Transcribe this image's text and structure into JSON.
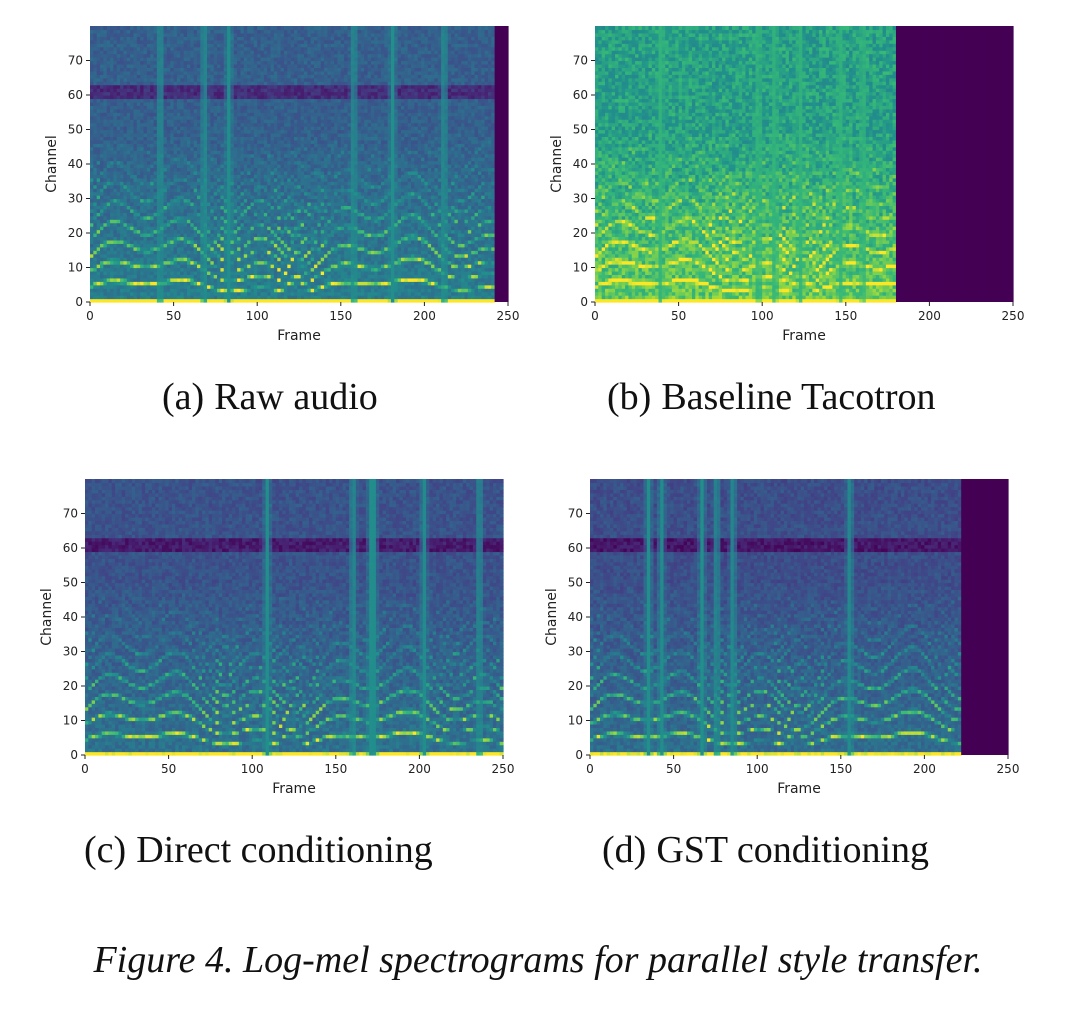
{
  "figure": {
    "caption_label": "Figure 4.",
    "caption_text": "Log-mel spectrograms for parallel style transfer."
  },
  "panels": [
    {
      "letter": "(a)",
      "title": "Raw audio"
    },
    {
      "letter": "(b)",
      "title": "Baseline Tacotron"
    },
    {
      "letter": "(c)",
      "title": "Direct conditioning"
    },
    {
      "letter": "(d)",
      "title": "GST conditioning"
    }
  ],
  "chart_data": [
    {
      "type": "heatmap",
      "xlabel": "Frame",
      "ylabel": "Channel",
      "xlim": [
        0,
        250
      ],
      "ylim": [
        0,
        80
      ],
      "xticks": [
        0,
        50,
        100,
        150,
        200,
        250
      ],
      "yticks": [
        0,
        10,
        20,
        30,
        40,
        50,
        60,
        70
      ],
      "colormap": "viridis",
      "active_frames": 242,
      "padding_color": "#440154"
    },
    {
      "type": "heatmap",
      "xlabel": "Frame",
      "ylabel": "Channel",
      "xlim": [
        0,
        250
      ],
      "ylim": [
        0,
        80
      ],
      "xticks": [
        0,
        50,
        100,
        150,
        200,
        250
      ],
      "yticks": [
        0,
        10,
        20,
        30,
        40,
        50,
        60,
        70
      ],
      "colormap": "viridis",
      "active_frames": 180,
      "padding_color": "#440154"
    },
    {
      "type": "heatmap",
      "xlabel": "Frame",
      "ylabel": "Channel",
      "xlim": [
        0,
        250
      ],
      "ylim": [
        0,
        80
      ],
      "xticks": [
        0,
        50,
        100,
        150,
        200,
        250
      ],
      "yticks": [
        0,
        10,
        20,
        30,
        40,
        50,
        60,
        70
      ],
      "colormap": "viridis",
      "active_frames": 250,
      "padding_color": "#440154"
    },
    {
      "type": "heatmap",
      "xlabel": "Frame",
      "ylabel": "Channel",
      "xlim": [
        0,
        250
      ],
      "ylim": [
        0,
        80
      ],
      "xticks": [
        0,
        50,
        100,
        150,
        200,
        250
      ],
      "yticks": [
        0,
        10,
        20,
        30,
        40,
        50,
        60,
        70
      ],
      "colormap": "viridis",
      "active_frames": 222,
      "padding_color": "#440154"
    }
  ]
}
